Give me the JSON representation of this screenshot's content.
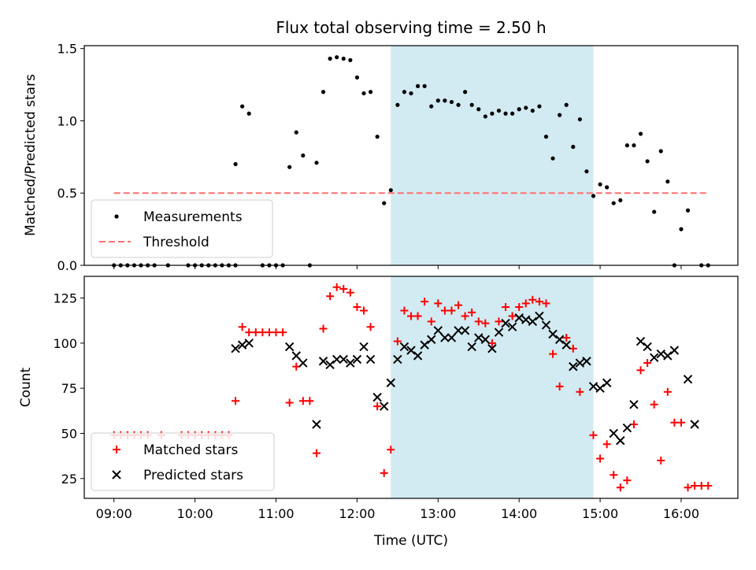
{
  "colors": {
    "measurement": "#000000",
    "threshold": "#ff7070",
    "matched": "#ff0000",
    "predicted": "#000000",
    "span": "#add8e6"
  },
  "chart_data": [
    {
      "type": "scatter",
      "title": "Flux total observing time = 2.50 h",
      "xlabel": "",
      "ylabel": "Matched/Predicted stars",
      "xlim": [
        "08:38",
        "16:42"
      ],
      "ylim": [
        0,
        1.52
      ],
      "yticks": [
        "0.0",
        "0.5",
        "1.0",
        "1.5"
      ],
      "highlight_span": [
        "12:25",
        "14:55"
      ],
      "legend": {
        "position": "lower-left",
        "entries": [
          "Measurements",
          "Threshold"
        ]
      },
      "threshold": {
        "name": "Threshold",
        "y": 0.5,
        "x_range": [
          "09:00",
          "16:20"
        ]
      },
      "series": [
        {
          "name": "Measurements",
          "marker": "dot",
          "points": [
            [
              "09:00",
              0
            ],
            [
              "09:05",
              0
            ],
            [
              "09:10",
              0
            ],
            [
              "09:15",
              0
            ],
            [
              "09:20",
              0
            ],
            [
              "09:25",
              0
            ],
            [
              "09:30",
              0
            ],
            [
              "09:40",
              0
            ],
            [
              "09:55",
              0
            ],
            [
              "10:00",
              0
            ],
            [
              "10:05",
              0
            ],
            [
              "10:10",
              0
            ],
            [
              "10:15",
              0
            ],
            [
              "10:20",
              0
            ],
            [
              "10:25",
              0
            ],
            [
              "10:30",
              0
            ],
            [
              "10:30",
              0.7
            ],
            [
              "10:35",
              1.1
            ],
            [
              "10:40",
              1.05
            ],
            [
              "10:50",
              0
            ],
            [
              "10:55",
              0
            ],
            [
              "11:00",
              0
            ],
            [
              "11:05",
              0
            ],
            [
              "11:10",
              0.68
            ],
            [
              "11:15",
              0.92
            ],
            [
              "11:20",
              0.76
            ],
            [
              "11:25",
              0
            ],
            [
              "11:30",
              0.71
            ],
            [
              "11:35",
              1.2
            ],
            [
              "11:40",
              1.43
            ],
            [
              "11:45",
              1.44
            ],
            [
              "11:50",
              1.43
            ],
            [
              "11:55",
              1.42
            ],
            [
              "12:00",
              1.3
            ],
            [
              "12:05",
              1.19
            ],
            [
              "12:10",
              1.2
            ],
            [
              "12:15",
              0.89
            ],
            [
              "12:20",
              0.43
            ],
            [
              "12:25",
              0.52
            ],
            [
              "12:30",
              1.11
            ],
            [
              "12:35",
              1.2
            ],
            [
              "12:40",
              1.19
            ],
            [
              "12:45",
              1.24
            ],
            [
              "12:50",
              1.24
            ],
            [
              "12:55",
              1.1
            ],
            [
              "13:00",
              1.14
            ],
            [
              "13:05",
              1.14
            ],
            [
              "13:10",
              1.13
            ],
            [
              "13:15",
              1.11
            ],
            [
              "13:20",
              1.2
            ],
            [
              "13:25",
              1.11
            ],
            [
              "13:30",
              1.08
            ],
            [
              "13:35",
              1.03
            ],
            [
              "13:40",
              1.05
            ],
            [
              "13:45",
              1.07
            ],
            [
              "13:50",
              1.05
            ],
            [
              "13:55",
              1.05
            ],
            [
              "14:00",
              1.08
            ],
            [
              "14:05",
              1.09
            ],
            [
              "14:10",
              1.07
            ],
            [
              "14:15",
              1.1
            ],
            [
              "14:20",
              0.89
            ],
            [
              "14:25",
              0.74
            ],
            [
              "14:30",
              1.04
            ],
            [
              "14:35",
              1.11
            ],
            [
              "14:40",
              0.82
            ],
            [
              "14:45",
              1.01
            ],
            [
              "14:50",
              0.65
            ],
            [
              "14:55",
              0.48
            ],
            [
              "15:00",
              0.56
            ],
            [
              "15:05",
              0.54
            ],
            [
              "15:10",
              0.43
            ],
            [
              "15:15",
              0.45
            ],
            [
              "15:20",
              0.83
            ],
            [
              "15:25",
              0.83
            ],
            [
              "15:30",
              0.91
            ],
            [
              "15:35",
              0.72
            ],
            [
              "15:40",
              0.37
            ],
            [
              "15:45",
              0.79
            ],
            [
              "15:50",
              0.58
            ],
            [
              "15:55",
              0
            ],
            [
              "16:00",
              0.25
            ],
            [
              "16:05",
              0.38
            ],
            [
              "16:15",
              0
            ],
            [
              "16:20",
              0
            ]
          ]
        }
      ]
    },
    {
      "type": "scatter",
      "title": "",
      "xlabel": "Time (UTC)",
      "ylabel": "Count",
      "xlim": [
        "08:38",
        "16:42"
      ],
      "ylim": [
        14,
        137
      ],
      "yticks": [
        "25",
        "50",
        "75",
        "100",
        "125"
      ],
      "xticks": [
        "09:00",
        "10:00",
        "11:00",
        "12:00",
        "13:00",
        "14:00",
        "15:00",
        "16:00"
      ],
      "highlight_span": [
        "12:25",
        "14:55"
      ],
      "legend": {
        "position": "lower-left",
        "entries": [
          "Matched stars",
          "Predicted stars"
        ]
      },
      "series": [
        {
          "name": "Matched stars",
          "marker": "plus",
          "points": [
            [
              "09:00",
              49
            ],
            [
              "09:05",
              49
            ],
            [
              "09:10",
              49
            ],
            [
              "09:15",
              49
            ],
            [
              "09:20",
              49
            ],
            [
              "09:25",
              49
            ],
            [
              "09:35",
              49
            ],
            [
              "09:50",
              49
            ],
            [
              "09:55",
              49
            ],
            [
              "10:00",
              49
            ],
            [
              "10:05",
              49
            ],
            [
              "10:10",
              49
            ],
            [
              "10:15",
              49
            ],
            [
              "10:20",
              49
            ],
            [
              "10:25",
              49
            ],
            [
              "10:30",
              68
            ],
            [
              "10:35",
              109
            ],
            [
              "10:40",
              106
            ],
            [
              "10:45",
              106
            ],
            [
              "10:50",
              106
            ],
            [
              "10:55",
              106
            ],
            [
              "11:00",
              106
            ],
            [
              "11:05",
              106
            ],
            [
              "11:10",
              67
            ],
            [
              "11:15",
              87
            ],
            [
              "11:20",
              68
            ],
            [
              "11:25",
              68
            ],
            [
              "11:30",
              39
            ],
            [
              "11:35",
              108
            ],
            [
              "11:40",
              126
            ],
            [
              "11:45",
              131
            ],
            [
              "11:50",
              130
            ],
            [
              "11:55",
              128
            ],
            [
              "12:00",
              120
            ],
            [
              "12:05",
              118
            ],
            [
              "12:10",
              109
            ],
            [
              "12:15",
              65
            ],
            [
              "12:20",
              28
            ],
            [
              "12:25",
              41
            ],
            [
              "12:30",
              101
            ],
            [
              "12:35",
              118
            ],
            [
              "12:40",
              115
            ],
            [
              "12:45",
              115
            ],
            [
              "12:50",
              123
            ],
            [
              "12:55",
              112
            ],
            [
              "13:00",
              122
            ],
            [
              "13:05",
              118
            ],
            [
              "13:10",
              118
            ],
            [
              "13:15",
              121
            ],
            [
              "13:20",
              115
            ],
            [
              "13:25",
              117
            ],
            [
              "13:30",
              112
            ],
            [
              "13:35",
              111
            ],
            [
              "13:40",
              100
            ],
            [
              "13:45",
              112
            ],
            [
              "13:50",
              120
            ],
            [
              "13:55",
              115
            ],
            [
              "14:00",
              120
            ],
            [
              "14:05",
              122
            ],
            [
              "14:10",
              124
            ],
            [
              "14:15",
              123
            ],
            [
              "14:20",
              122
            ],
            [
              "14:25",
              94
            ],
            [
              "14:30",
              76
            ],
            [
              "14:35",
              103
            ],
            [
              "14:40",
              97
            ],
            [
              "14:45",
              73
            ],
            [
              "14:55",
              49
            ],
            [
              "15:00",
              36
            ],
            [
              "15:05",
              44
            ],
            [
              "15:10",
              27
            ],
            [
              "15:15",
              20
            ],
            [
              "15:20",
              24
            ],
            [
              "15:25",
              55
            ],
            [
              "15:30",
              85
            ],
            [
              "15:35",
              89
            ],
            [
              "15:40",
              66
            ],
            [
              "15:45",
              35
            ],
            [
              "15:50",
              73
            ],
            [
              "15:55",
              56
            ],
            [
              "16:00",
              56
            ],
            [
              "16:05",
              20
            ],
            [
              "16:10",
              21
            ],
            [
              "16:15",
              21
            ],
            [
              "16:20",
              21
            ]
          ]
        },
        {
          "name": "Predicted stars",
          "marker": "x",
          "points": [
            [
              "10:30",
              97
            ],
            [
              "10:35",
              99
            ],
            [
              "10:40",
              100
            ],
            [
              "11:10",
              98
            ],
            [
              "11:15",
              93
            ],
            [
              "11:20",
              89
            ],
            [
              "11:30",
              55
            ],
            [
              "11:35",
              90
            ],
            [
              "11:40",
              88
            ],
            [
              "11:45",
              91
            ],
            [
              "11:50",
              91
            ],
            [
              "11:55",
              89
            ],
            [
              "12:00",
              91
            ],
            [
              "12:05",
              98
            ],
            [
              "12:10",
              91
            ],
            [
              "12:15",
              70
            ],
            [
              "12:20",
              65
            ],
            [
              "12:25",
              78
            ],
            [
              "12:30",
              91
            ],
            [
              "12:35",
              98
            ],
            [
              "12:40",
              96
            ],
            [
              "12:45",
              93
            ],
            [
              "12:50",
              99
            ],
            [
              "12:55",
              102
            ],
            [
              "13:00",
              107
            ],
            [
              "13:05",
              103
            ],
            [
              "13:10",
              103
            ],
            [
              "13:15",
              107
            ],
            [
              "13:20",
              107
            ],
            [
              "13:25",
              98
            ],
            [
              "13:30",
              103
            ],
            [
              "13:35",
              102
            ],
            [
              "13:40",
              97
            ],
            [
              "13:45",
              106
            ],
            [
              "13:50",
              111
            ],
            [
              "13:55",
              109
            ],
            [
              "14:00",
              114
            ],
            [
              "14:05",
              113
            ],
            [
              "14:10",
              112
            ],
            [
              "14:15",
              115
            ],
            [
              "14:20",
              110
            ],
            [
              "14:25",
              105
            ],
            [
              "14:30",
              102
            ],
            [
              "14:35",
              99
            ],
            [
              "14:40",
              87
            ],
            [
              "14:45",
              89
            ],
            [
              "14:50",
              90
            ],
            [
              "14:55",
              76
            ],
            [
              "15:00",
              75
            ],
            [
              "15:05",
              78
            ],
            [
              "15:10",
              50
            ],
            [
              "15:15",
              46
            ],
            [
              "15:20",
              53
            ],
            [
              "15:25",
              66
            ],
            [
              "15:30",
              101
            ],
            [
              "15:35",
              98
            ],
            [
              "15:40",
              92
            ],
            [
              "15:45",
              94
            ],
            [
              "15:50",
              93
            ],
            [
              "15:55",
              96
            ],
            [
              "16:05",
              80
            ],
            [
              "16:10",
              55
            ]
          ]
        }
      ]
    }
  ]
}
